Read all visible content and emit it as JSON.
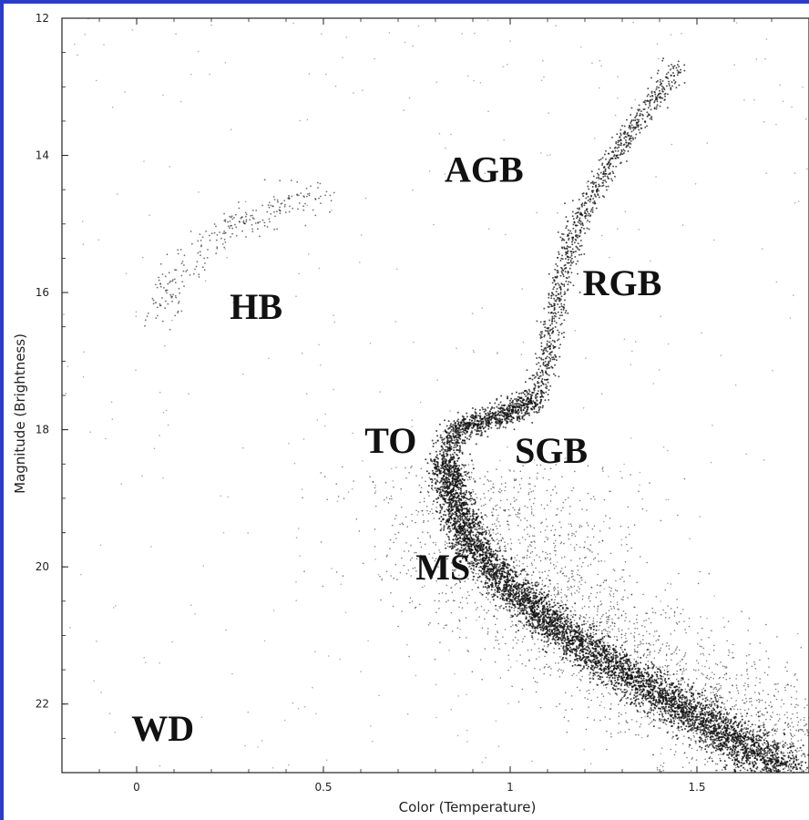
{
  "chart_data": {
    "type": "scatter",
    "title": "",
    "xlabel": "Color (Temperature)",
    "ylabel": "Magnitude (Brightness)",
    "xlim": [
      -0.2,
      1.8
    ],
    "ylim": [
      23.0,
      12.0
    ],
    "y_inverted": true,
    "x_ticks": [
      0,
      0.5,
      1,
      1.5
    ],
    "x_tick_labels": [
      "0",
      "0.5",
      "1",
      "1.5"
    ],
    "y_ticks": [
      12,
      14,
      16,
      18,
      20,
      22
    ],
    "y_tick_labels": [
      "12",
      "14",
      "16",
      "18",
      "20",
      "22"
    ],
    "grid": false,
    "marker_color": "#111111",
    "frame_color": "#2a3cc8",
    "region_labels": [
      {
        "text": "AGB",
        "x": 0.93,
        "y": 14.2
      },
      {
        "text": "RGB",
        "x": 1.3,
        "y": 15.85
      },
      {
        "text": "HB",
        "x": 0.32,
        "y": 16.2
      },
      {
        "text": "TO",
        "x": 0.68,
        "y": 18.15
      },
      {
        "text": "SGB",
        "x": 1.11,
        "y": 18.3
      },
      {
        "text": "MS",
        "x": 0.82,
        "y": 20.0
      },
      {
        "text": "WD",
        "x": 0.07,
        "y": 22.35
      }
    ],
    "sequences": [
      {
        "name": "Main Sequence",
        "points": [
          [
            0.83,
            18.4
          ],
          [
            0.84,
            18.9
          ],
          [
            0.87,
            19.4
          ],
          [
            0.93,
            19.9
          ],
          [
            1.02,
            20.4
          ],
          [
            1.12,
            20.85
          ],
          [
            1.25,
            21.35
          ],
          [
            1.38,
            21.8
          ],
          [
            1.52,
            22.25
          ],
          [
            1.67,
            22.75
          ],
          [
            1.74,
            23.0
          ]
        ]
      },
      {
        "name": "Subgiant Branch",
        "points": [
          [
            0.83,
            18.3
          ],
          [
            0.86,
            18.0
          ],
          [
            0.93,
            17.85
          ],
          [
            1.0,
            17.75
          ],
          [
            1.07,
            17.55
          ]
        ]
      },
      {
        "name": "Red Giant Branch",
        "points": [
          [
            1.07,
            17.55
          ],
          [
            1.1,
            17.0
          ],
          [
            1.11,
            16.6
          ],
          [
            1.13,
            16.0
          ],
          [
            1.15,
            15.5
          ],
          [
            1.19,
            14.9
          ],
          [
            1.24,
            14.35
          ],
          [
            1.33,
            13.6
          ],
          [
            1.45,
            12.7
          ]
        ]
      },
      {
        "name": "Horizontal Branch",
        "points": [
          [
            0.06,
            16.4
          ],
          [
            0.1,
            15.8
          ],
          [
            0.18,
            15.35
          ],
          [
            0.3,
            14.9
          ],
          [
            0.42,
            14.65
          ],
          [
            0.5,
            14.6
          ]
        ]
      }
    ]
  }
}
